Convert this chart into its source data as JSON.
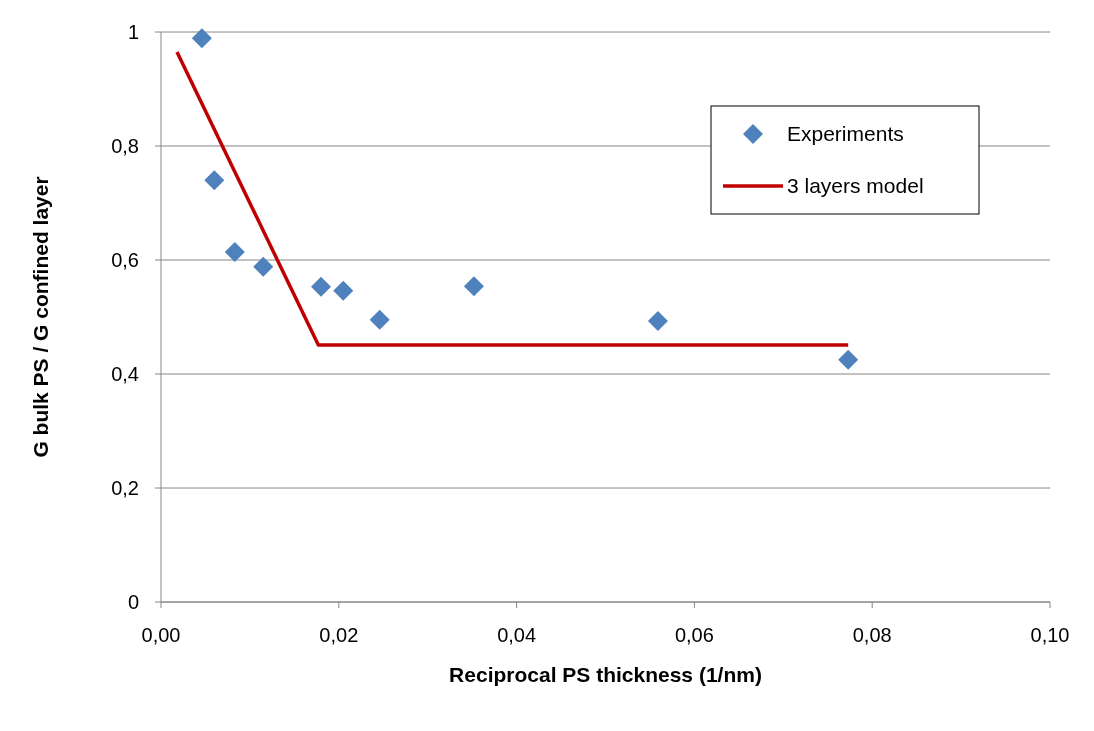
{
  "chart_data": {
    "type": "scatter",
    "xlabel": "Reciprocal PS thickness (1/nm)",
    "ylabel": "G bulk PS / G confined layer",
    "xlim": [
      0,
      0.1
    ],
    "xticks": [
      {
        "value": 0,
        "label": "0,00"
      },
      {
        "value": 0.02,
        "label": "0,02"
      },
      {
        "value": 0.04,
        "label": "0,04"
      },
      {
        "value": 0.06,
        "label": "0,06"
      },
      {
        "value": 0.08,
        "label": "0,08"
      },
      {
        "value": 0.1,
        "label": "0,10"
      }
    ],
    "ylim": [
      0,
      1
    ],
    "yticks": [
      0,
      {
        "value": 0.2,
        "label": "0,2"
      },
      {
        "value": 0.4,
        "label": "0,4"
      },
      {
        "value": 0.6,
        "label": "0,6"
      },
      {
        "value": 0.8,
        "label": "0,8"
      },
      1
    ],
    "grid": "y",
    "legend": "top right",
    "series": [
      {
        "name": "Experiments",
        "marker": "diamond",
        "color": "#4f81bd",
        "x": [
          0.0046,
          0.006,
          0.0083,
          0.0115,
          0.018,
          0.0205,
          0.0246,
          0.0352,
          0.0559,
          0.0773
        ],
        "values": [
          0.989,
          0.74,
          0.614,
          0.588,
          0.553,
          0.546,
          0.495,
          0.554,
          0.493,
          0.425
        ]
      },
      {
        "name": "3 layers model",
        "type": "line",
        "marker": "none",
        "line_style": "solid",
        "color": "#c00000",
        "x": [
          0.0018,
          0.0177,
          0.0773
        ],
        "values": [
          0.965,
          0.451,
          0.451
        ]
      }
    ]
  }
}
